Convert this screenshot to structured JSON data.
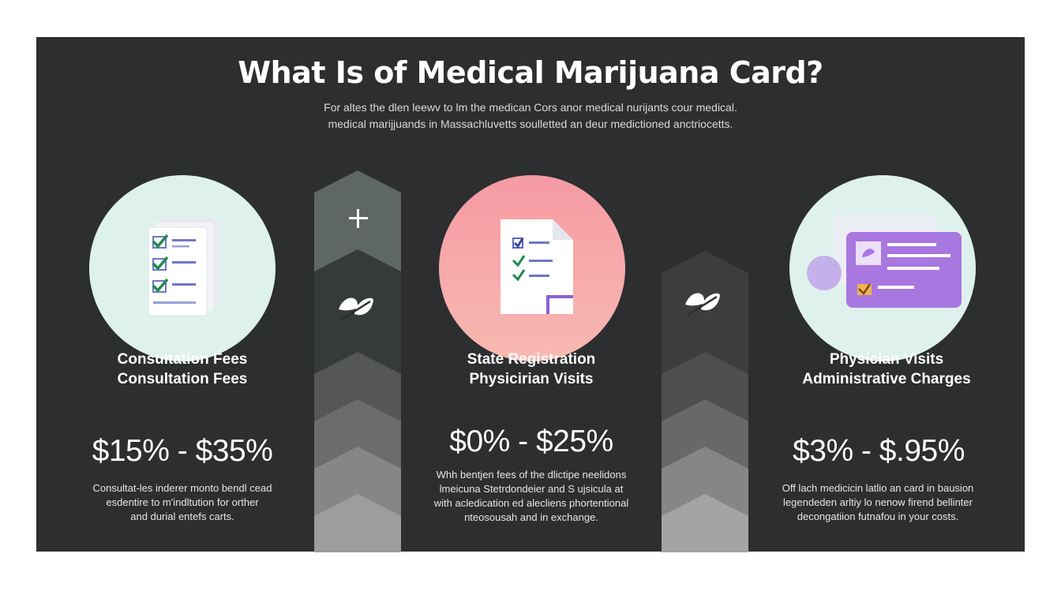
{
  "header": {
    "title": "What Is of Medical Marijuana Card?",
    "subtitle_lines": [
      "For altes the dlen leewv to lm the medican Cors anor medical nurijants cour medical.",
      "medical marijjuands in Massachluvetts soulletted an deur medictioned anctriocetts."
    ]
  },
  "columns": [
    {
      "title_lines": [
        "Consultation Fees",
        "Consultation Fees"
      ],
      "price": "$15% - $35%",
      "desc_lines": [
        "Consultat-les inderer monto bendl cead",
        "esdentire to m'indltution for orther",
        "and durial entefs carts."
      ],
      "circle_color": "#dff1ec",
      "icon": "checklist-icon"
    },
    {
      "title_lines": [
        "State Registration",
        "Physicirian Visits"
      ],
      "price": "$0% - $25%",
      "desc_lines": [
        "Whh bentjen fees of the dlictipe neelidons",
        "lmeicuna Stetrdondeier and S ujsicula at",
        "with acledication ed alecliens phortentional",
        "nteosousah and in exchange."
      ],
      "circle_color": "#f7a6a8",
      "icon": "document-icon"
    },
    {
      "title_lines": [
        "Physician Visits",
        "Administrative Charges"
      ],
      "price": "$3% - $.95%",
      "desc_lines": [
        "Off lach medicicin latlio an card in bausion",
        "legendeden arltiy lo nenow firend bellinter",
        "decongatiion futnafou in your costs."
      ],
      "circle_color": "#dff1ec",
      "icon": "id-card-icon"
    }
  ],
  "dividers": [
    {
      "icons": [
        "plus-icon",
        "leaf-icon"
      ]
    },
    {
      "icons": [
        "leaf-icon"
      ]
    }
  ]
}
